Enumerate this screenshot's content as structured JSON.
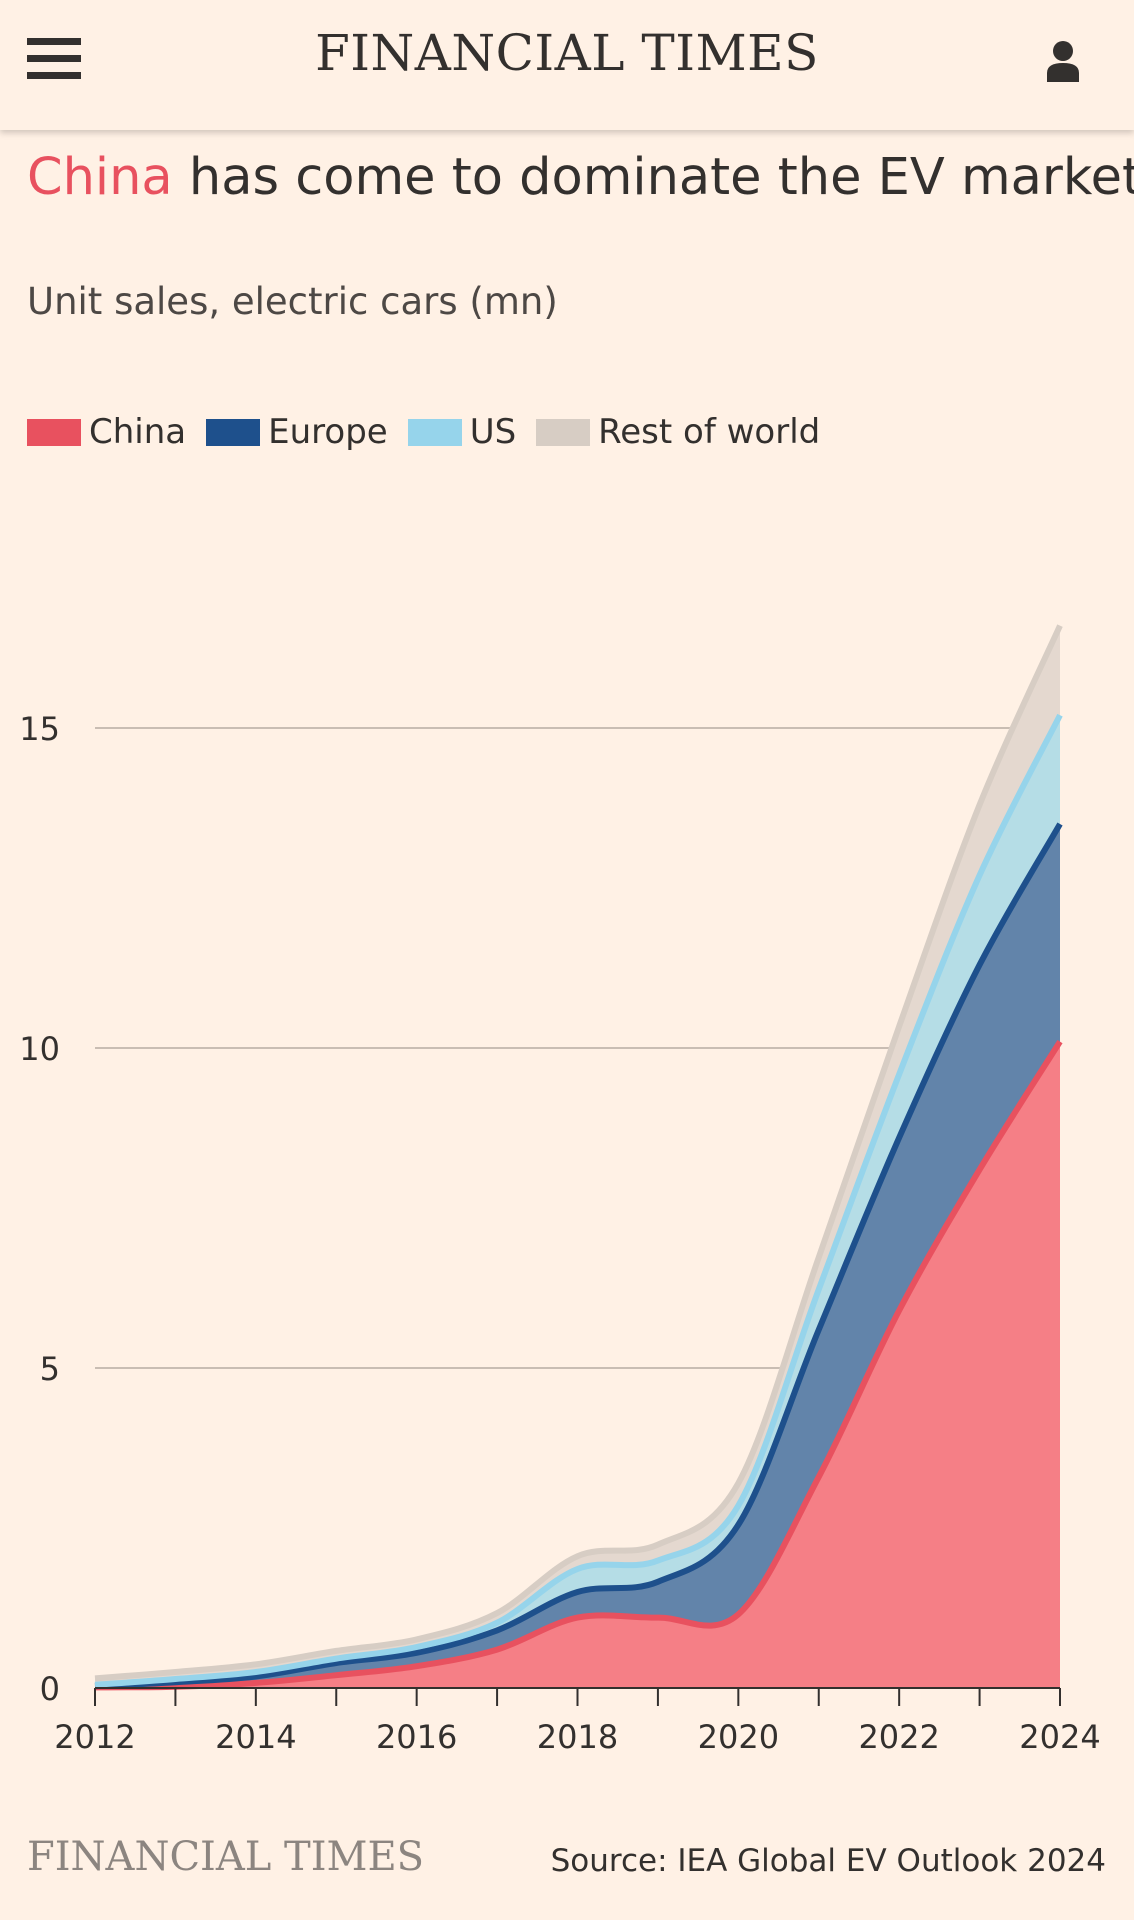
{
  "header": {
    "masthead": "FINANCIAL TIMES",
    "menu_icon": "hamburger-menu-icon",
    "account_icon": "user-account-icon"
  },
  "headline": {
    "highlight": "China",
    "rest": " has come to dominate the EV market"
  },
  "footer": {
    "logo": "FINANCIAL TIMES",
    "source": "Source: IEA Global EV Outlook 2024"
  },
  "colors": {
    "background": "#fff1e5",
    "china_line": "#e8515f",
    "china_fill": "#f57f86",
    "europe_line": "#1e508c",
    "europe_fill": "#6284aa",
    "us_line": "#96d4eb",
    "us_fill": "#b5dde6",
    "row_line": "#d7cdc4",
    "row_fill": "#e4d8cf",
    "gridline": "#c9bdb3",
    "text": "#33302e"
  },
  "chart_data": {
    "type": "area",
    "subtitle": "Unit sales, electric cars (mn)",
    "stacked": true,
    "x": [
      2012,
      2013,
      2014,
      2015,
      2016,
      2017,
      2018,
      2019,
      2020,
      2021,
      2022,
      2023,
      2024
    ],
    "x_ticks": [
      "2012",
      "2014",
      "2016",
      "2018",
      "2020",
      "2022",
      "2024"
    ],
    "y_ticks": [
      "0",
      "5",
      "10",
      "15"
    ],
    "ylim": [
      0,
      17
    ],
    "xlim": [
      2012,
      2024
    ],
    "grid": true,
    "legend_position": "top-left",
    "series": [
      {
        "name": "China",
        "values": [
          0.01,
          0.02,
          0.08,
          0.2,
          0.34,
          0.6,
          1.1,
          1.1,
          1.15,
          3.3,
          5.9,
          8.1,
          10.1
        ]
      },
      {
        "name": "Europe",
        "values": [
          0.02,
          0.07,
          0.1,
          0.19,
          0.21,
          0.3,
          0.4,
          0.56,
          1.4,
          2.3,
          2.7,
          3.2,
          3.4
        ]
      },
      {
        "name": "US",
        "values": [
          0.02,
          0.05,
          0.07,
          0.07,
          0.09,
          0.12,
          0.36,
          0.33,
          0.3,
          0.63,
          0.99,
          1.4,
          1.7
        ]
      },
      {
        "name": "Rest of world",
        "values": [
          0.1,
          0.11,
          0.12,
          0.12,
          0.12,
          0.15,
          0.2,
          0.25,
          0.35,
          0.5,
          0.75,
          1.1,
          1.4
        ]
      }
    ]
  }
}
